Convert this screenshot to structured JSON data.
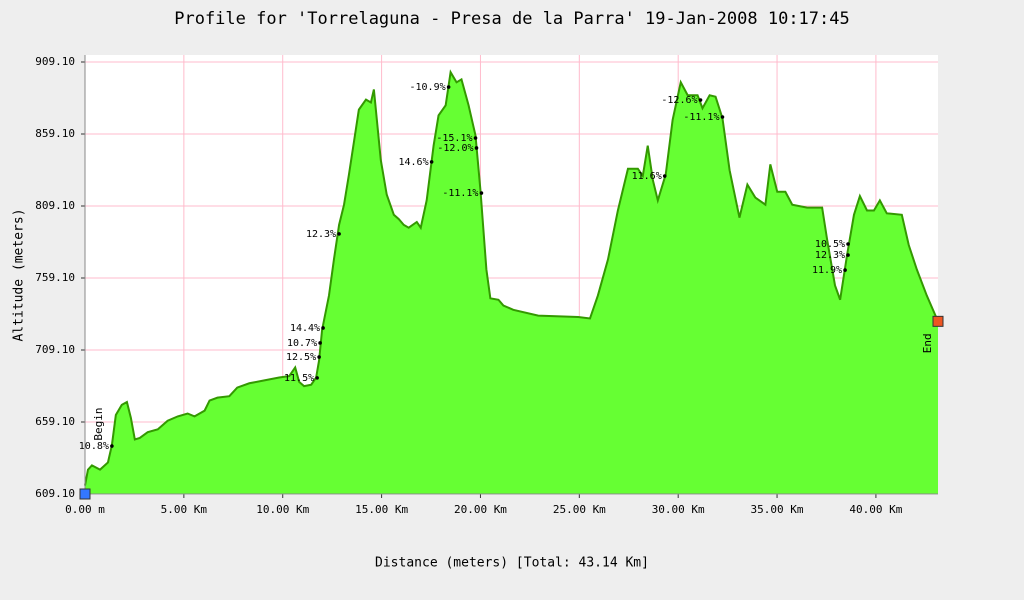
{
  "chart_data": {
    "type": "area",
    "title": "Profile for 'Torrelaguna - Presa de la Parra' 19-Jan-2008 10:17:45",
    "x_label": "Distance (meters) [Total: 43.14 Km]",
    "y_label": "Altitude (meters)",
    "color": "#66ff33",
    "line_color": "#339900",
    "grid": true,
    "grid_color": "#ffbbcc",
    "xlim": [
      0,
      43.14
    ],
    "ylim": [
      609.1,
      909.1
    ],
    "xticks": [
      {
        "value": 0,
        "label": "0.00 m"
      },
      {
        "value": 5,
        "label": "5.00 Km"
      },
      {
        "value": 10,
        "label": "10.00 Km"
      },
      {
        "value": 15,
        "label": "15.00 Km"
      },
      {
        "value": 20,
        "label": "20.00 Km"
      },
      {
        "value": 25,
        "label": "25.00 Km"
      },
      {
        "value": 30,
        "label": "30.00 Km"
      },
      {
        "value": 35,
        "label": "35.00 Km"
      },
      {
        "value": 40,
        "label": "40.00 Km"
      }
    ],
    "yticks": [
      {
        "value": 609.1,
        "label": "609.10"
      },
      {
        "value": 659.1,
        "label": "659.10"
      },
      {
        "value": 709.1,
        "label": "709.10"
      },
      {
        "value": 759.1,
        "label": "759.10"
      },
      {
        "value": 809.1,
        "label": "809.10"
      },
      {
        "value": 859.1,
        "label": "859.10"
      },
      {
        "value": 909.1,
        "label": "909.10"
      }
    ],
    "x": [
      0,
      0.15,
      0.35,
      0.76,
      1.16,
      1.36,
      1.56,
      1.86,
      2.12,
      2.32,
      2.52,
      2.77,
      3.17,
      3.68,
      4.18,
      4.69,
      5.19,
      5.54,
      6.05,
      6.3,
      6.7,
      7.3,
      7.7,
      8.31,
      9.07,
      9.82,
      10.33,
      10.63,
      10.83,
      11.08,
      11.44,
      11.69,
      11.84,
      11.99,
      12.34,
      12.59,
      12.85,
      13.1,
      13.35,
      13.85,
      14.21,
      14.46,
      14.61,
      14.76,
      14.96,
      15.26,
      15.62,
      15.87,
      16.12,
      16.37,
      16.78,
      16.98,
      17.28,
      17.63,
      17.88,
      18.24,
      18.49,
      18.79,
      19.04,
      19.4,
      19.75,
      20.0,
      20.3,
      20.5,
      20.91,
      21.16,
      21.66,
      22.92,
      24.94,
      25.54,
      25.94,
      26.45,
      26.95,
      27.46,
      27.96,
      28.21,
      28.46,
      28.72,
      28.97,
      29.37,
      29.72,
      30.13,
      30.48,
      30.98,
      31.23,
      31.59,
      31.89,
      32.24,
      32.6,
      33.1,
      33.5,
      33.9,
      34.41,
      34.66,
      35.01,
      35.42,
      35.77,
      36.52,
      37.28,
      37.53,
      37.93,
      38.19,
      38.54,
      38.89,
      39.19,
      39.55,
      39.9,
      40.2,
      40.55,
      41.31,
      41.66,
      42.07,
      42.57,
      43.14
    ],
    "y": [
      615,
      626,
      629,
      626,
      631,
      643,
      664,
      671,
      673,
      662,
      647,
      648,
      652,
      654,
      660,
      663,
      665,
      663,
      667,
      674,
      676,
      677,
      683,
      686,
      688,
      690,
      691,
      697,
      687,
      684,
      685,
      690,
      702,
      723,
      747,
      772,
      796,
      810,
      831,
      876,
      883,
      881,
      890,
      869,
      841,
      817,
      803,
      800,
      796,
      794,
      798,
      794,
      813,
      851,
      872,
      879,
      902,
      895,
      897,
      879,
      858,
      820,
      765,
      745,
      744,
      740,
      737,
      733,
      732,
      731,
      747,
      772,
      806,
      835,
      835,
      830,
      851,
      827,
      813,
      831,
      869,
      895,
      886,
      886,
      877,
      886,
      885,
      870,
      834,
      801,
      824,
      815,
      810,
      838,
      819,
      819,
      810,
      808,
      808,
      786,
      754,
      744,
      775,
      803,
      816,
      806,
      806,
      813,
      804,
      803,
      782,
      765,
      747,
      729
    ],
    "annotations": [
      {
        "text": "10.8%",
        "x": 1.36,
        "y": 642.4,
        "color": "#999999"
      },
      {
        "text": "11.5%",
        "x": 11.74,
        "y": 689.7,
        "color": "#999999"
      },
      {
        "text": "12.5%",
        "x": 11.84,
        "y": 704.2,
        "color": "#000000"
      },
      {
        "text": "10.7%",
        "x": 11.89,
        "y": 714,
        "color": "#999999"
      },
      {
        "text": "14.4%",
        "x": 12.04,
        "y": 724.4,
        "color": "#000000"
      },
      {
        "text": "12.3%",
        "x": 12.85,
        "y": 789.7,
        "color": "#000000"
      },
      {
        "text": "14.6%",
        "x": 17.53,
        "y": 839.7,
        "color": "#000000"
      },
      {
        "text": "-10.9%",
        "x": 18.39,
        "y": 891.7,
        "color": "#999999"
      },
      {
        "text": "-12.0%",
        "x": 19.8,
        "y": 849.4,
        "color": "#999999"
      },
      {
        "text": "-15.1%",
        "x": 19.75,
        "y": 856.3,
        "color": "#000000"
      },
      {
        "text": "-11.1%",
        "x": 20.05,
        "y": 818.1,
        "color": "#999999"
      },
      {
        "text": "11.6%",
        "x": 29.32,
        "y": 829.9,
        "color": "#555555"
      },
      {
        "text": "-12.6%",
        "x": 31.13,
        "y": 882.7,
        "color": "#000000"
      },
      {
        "text": "-11.1%",
        "x": 32.24,
        "y": 870.9,
        "color": "#999999"
      },
      {
        "text": "10.5%",
        "x": 38.59,
        "y": 782.7,
        "color": "#999999"
      },
      {
        "text": "12.3%",
        "x": 38.59,
        "y": 775,
        "color": "#000000"
      },
      {
        "text": "11.9%",
        "x": 38.44,
        "y": 764.6,
        "color": "#999999"
      }
    ],
    "markers": [
      {
        "label": "Begin",
        "x": 0,
        "y": 609.1,
        "color": "#3377ff"
      },
      {
        "label": "End",
        "x": 43.14,
        "y": 729,
        "color": "#ee5522"
      }
    ]
  }
}
